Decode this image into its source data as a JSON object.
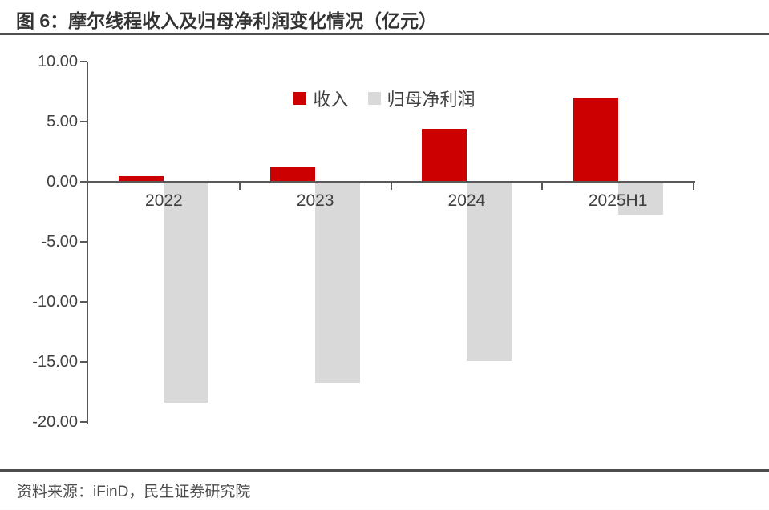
{
  "title": "图 6：摩尔线程收入及归母净利润变化情况（亿元）",
  "source": "资料来源：iFinD，民生证券研究院",
  "chart_data": {
    "type": "bar",
    "categories": [
      "2022",
      "2023",
      "2024",
      "2025H1"
    ],
    "series": [
      {
        "key": "revenue",
        "name": "收入",
        "color": "#CC0000",
        "values": [
          0.46,
          1.24,
          4.38,
          7.02
        ]
      },
      {
        "key": "net-profit",
        "name": "归母净利润",
        "color": "#D9D9D9",
        "values": [
          -18.4,
          -16.73,
          -14.92,
          -2.71
        ]
      }
    ],
    "title": "摩尔线程收入及归母净利润变化情况（亿元）",
    "xlabel": "",
    "ylabel": "",
    "ylim": [
      -20,
      10
    ],
    "ytick_step": 5,
    "ytick_labels": [
      "10.00",
      "5.00",
      "0.00",
      "-5.00",
      "-10.00",
      "-15.00",
      "-20.00"
    ],
    "grid": false,
    "legend_position": "top-center"
  },
  "colors": {
    "axis": "#595959",
    "label_text": "#404040",
    "title_text": "#333333",
    "divider": "#4d4d4d",
    "bottom_border": "#cfcfcf"
  }
}
